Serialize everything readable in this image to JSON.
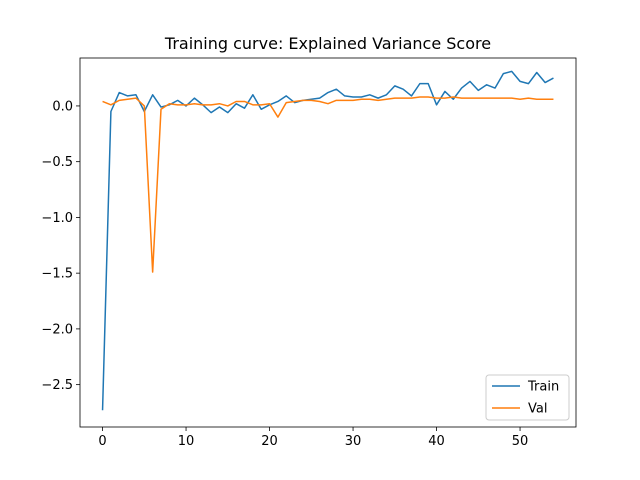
{
  "chart_data": {
    "type": "line",
    "title": "Training curve: Explained Variance Score",
    "xlabel": "",
    "ylabel": "",
    "xlim": [
      -2.7,
      56.7
    ],
    "ylim": [
      -2.88,
      0.43
    ],
    "xticks": [
      0,
      10,
      20,
      30,
      40,
      50
    ],
    "yticks": [
      0.0,
      -0.5,
      -1.0,
      -1.5,
      -2.0,
      -2.5
    ],
    "ytick_labels": [
      "0.0",
      "−0.5",
      "−1.0",
      "−1.5",
      "−2.0",
      "−2.5"
    ],
    "grid": false,
    "legend_position": "lower right",
    "x": [
      0,
      1,
      2,
      3,
      4,
      5,
      6,
      7,
      8,
      9,
      10,
      11,
      12,
      13,
      14,
      15,
      16,
      17,
      18,
      19,
      20,
      21,
      22,
      23,
      24,
      25,
      26,
      27,
      28,
      29,
      30,
      31,
      32,
      33,
      34,
      35,
      36,
      37,
      38,
      39,
      40,
      41,
      42,
      43,
      44,
      45,
      46,
      47,
      48,
      49,
      50,
      51,
      52,
      53,
      54
    ],
    "series": [
      {
        "name": "Train",
        "color": "#1f77b4",
        "values": [
          -2.73,
          -0.05,
          0.12,
          0.09,
          0.1,
          -0.05,
          0.1,
          -0.01,
          0.01,
          0.05,
          0.0,
          0.07,
          0.01,
          -0.06,
          -0.01,
          -0.06,
          0.02,
          -0.02,
          0.1,
          -0.03,
          0.01,
          0.04,
          0.09,
          0.03,
          0.05,
          0.06,
          0.07,
          0.12,
          0.15,
          0.09,
          0.08,
          0.08,
          0.1,
          0.07,
          0.1,
          0.18,
          0.15,
          0.09,
          0.2,
          0.2,
          0.01,
          0.13,
          0.06,
          0.16,
          0.22,
          0.14,
          0.19,
          0.16,
          0.29,
          0.31,
          0.22,
          0.2,
          0.3,
          0.21,
          0.25
        ]
      },
      {
        "name": "Val",
        "color": "#ff7f0e",
        "values": [
          0.04,
          0.01,
          0.05,
          0.06,
          0.07,
          0.0,
          -1.49,
          -0.03,
          0.02,
          0.01,
          0.01,
          0.02,
          0.01,
          0.01,
          0.02,
          0.0,
          0.04,
          0.04,
          0.01,
          0.01,
          0.02,
          -0.1,
          0.03,
          0.04,
          0.05,
          0.05,
          0.04,
          0.02,
          0.05,
          0.05,
          0.05,
          0.06,
          0.06,
          0.05,
          0.06,
          0.07,
          0.07,
          0.07,
          0.08,
          0.08,
          0.07,
          0.07,
          0.08,
          0.07,
          0.07,
          0.07,
          0.07,
          0.07,
          0.07,
          0.07,
          0.06,
          0.07,
          0.06,
          0.06,
          0.06
        ]
      }
    ]
  }
}
